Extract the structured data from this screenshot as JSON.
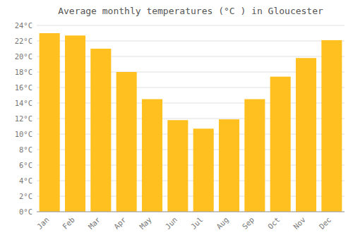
{
  "chart_data": {
    "type": "bar",
    "title": "Average monthly temperatures (°C ) in Gloucester",
    "categories": [
      "Jan",
      "Feb",
      "Mar",
      "Apr",
      "May",
      "Jun",
      "Jul",
      "Aug",
      "Sep",
      "Oct",
      "Nov",
      "Dec"
    ],
    "values": [
      23.0,
      22.7,
      21.0,
      18.0,
      14.5,
      11.8,
      10.7,
      11.9,
      14.5,
      17.4,
      19.8,
      22.1
    ],
    "color": "#FFC020",
    "ylim": [
      0,
      24
    ],
    "yticks": [
      {
        "value": 0,
        "label": "0°C"
      },
      {
        "value": 2,
        "label": "2°C"
      },
      {
        "value": 4,
        "label": "4°C"
      },
      {
        "value": 6,
        "label": "6°C"
      },
      {
        "value": 8,
        "label": "8°C"
      },
      {
        "value": 10,
        "label": "10°C"
      },
      {
        "value": 12,
        "label": "12°C"
      },
      {
        "value": 14,
        "label": "14°C"
      },
      {
        "value": 16,
        "label": "16°C"
      },
      {
        "value": 18,
        "label": "18°C"
      },
      {
        "value": 20,
        "label": "20°C"
      },
      {
        "value": 22,
        "label": "22°C"
      },
      {
        "value": 24,
        "label": "24°C"
      }
    ],
    "grid": true
  }
}
